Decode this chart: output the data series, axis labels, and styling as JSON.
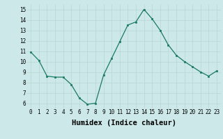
{
  "x": [
    0,
    1,
    2,
    3,
    4,
    5,
    6,
    7,
    8,
    9,
    10,
    11,
    12,
    13,
    14,
    15,
    16,
    17,
    18,
    19,
    20,
    21,
    22,
    23
  ],
  "y": [
    10.9,
    10.1,
    8.6,
    8.5,
    8.5,
    7.8,
    6.5,
    5.9,
    6.0,
    8.7,
    10.3,
    11.9,
    13.5,
    13.8,
    15.0,
    14.1,
    13.0,
    11.6,
    10.6,
    10.0,
    9.5,
    9.0,
    8.6,
    9.1
  ],
  "xlim": [
    -0.5,
    23.5
  ],
  "ylim": [
    5.5,
    15.5
  ],
  "yticks": [
    6,
    7,
    8,
    9,
    10,
    11,
    12,
    13,
    14,
    15
  ],
  "xticks": [
    0,
    1,
    2,
    3,
    4,
    5,
    6,
    7,
    8,
    9,
    10,
    11,
    12,
    13,
    14,
    15,
    16,
    17,
    18,
    19,
    20,
    21,
    22,
    23
  ],
  "xlabel": "Humidex (Indice chaleur)",
  "line_color": "#1a7a60",
  "marker": "s",
  "marker_size": 2.0,
  "background_color": "#cce8e8",
  "grid_color": "#b8d8d0",
  "tick_fontsize": 5.5,
  "xlabel_fontsize": 7.5,
  "xlabel_fontfamily": "monospace",
  "xlabel_fontweight": "bold"
}
